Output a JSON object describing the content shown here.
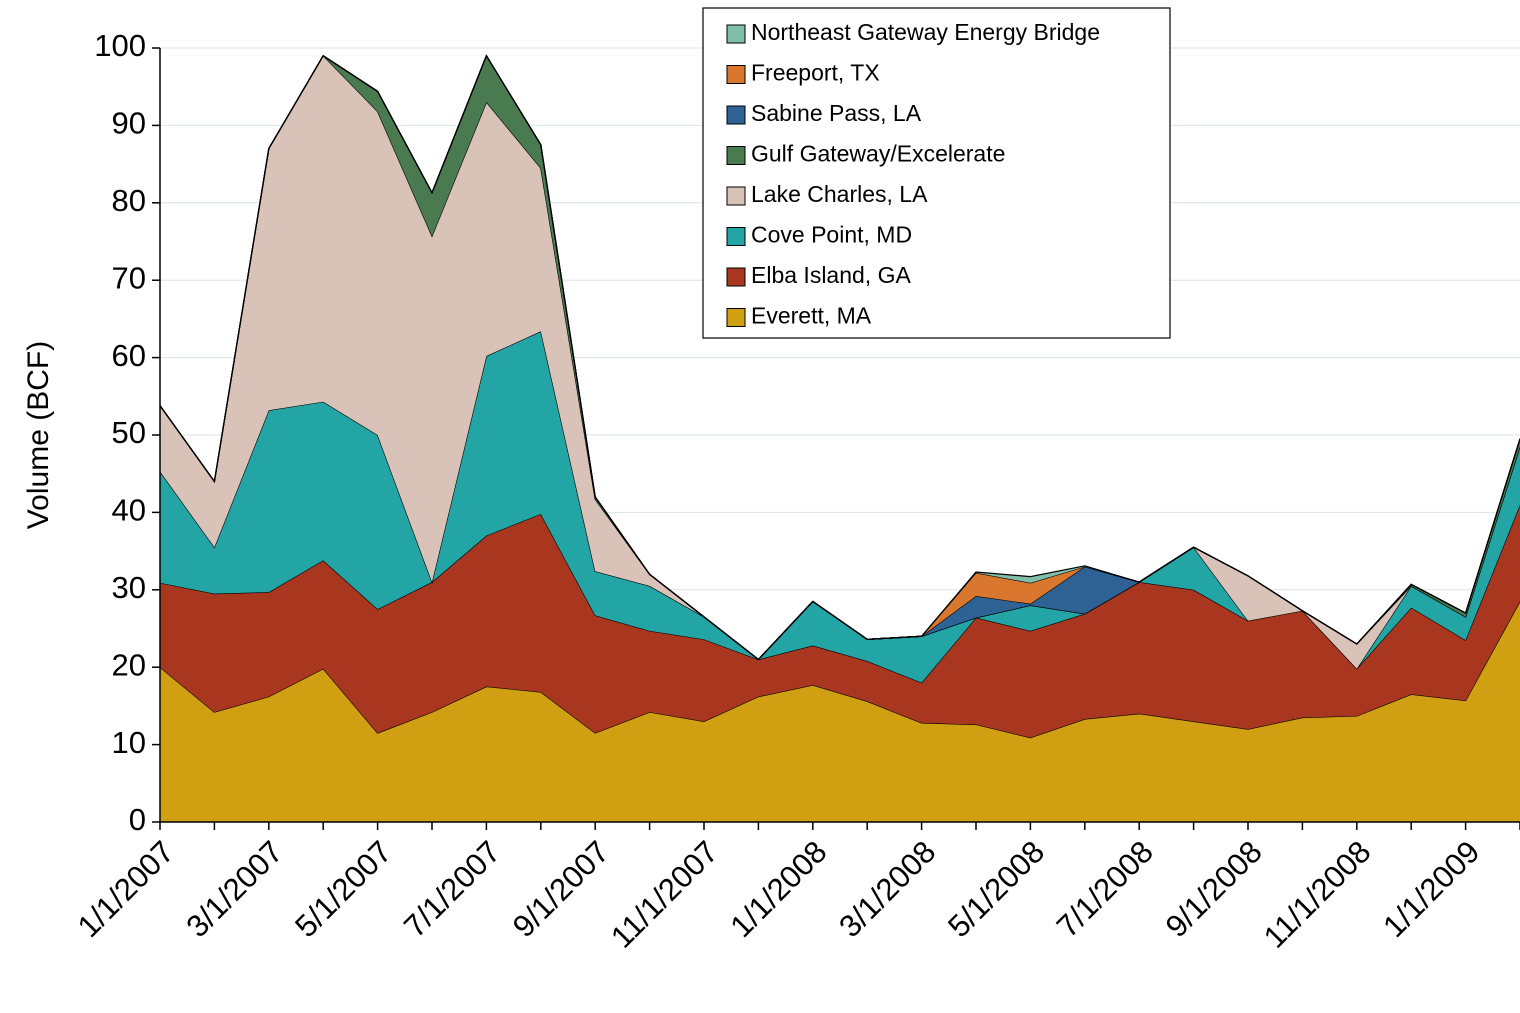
{
  "chart_data": {
    "type": "stacked_area",
    "y_label": "Volume (BCF)",
    "categories": [
      "1/1/2007",
      null,
      "3/1/2007",
      null,
      "5/1/2007",
      null,
      "7/1/2007",
      null,
      "9/1/2007",
      null,
      "11/1/2007",
      null,
      "1/1/2008",
      null,
      "3/1/2008",
      null,
      "5/1/2008",
      null,
      "7/1/2008",
      null,
      "9/1/2008",
      null,
      "11/1/2008",
      null,
      "1/1/2009",
      null
    ],
    "ylim": [
      0,
      100
    ],
    "yticks": [
      0,
      10,
      20,
      30,
      40,
      50,
      60,
      70,
      80,
      90,
      100
    ],
    "grid": true,
    "series": [
      {
        "name": "Everett, MA",
        "color": "#d1a012",
        "values": [
          20,
          14.2,
          16.2,
          19.8,
          11.5,
          14.2,
          17.5,
          16.8,
          11.5,
          14.2,
          13,
          16.2,
          17.7,
          15.6,
          12.8,
          12.6,
          10.9,
          13.3,
          14,
          13,
          12,
          13.5,
          13.7,
          16.5,
          15.7,
          28.5
        ]
      },
      {
        "name": "Elba Island, GA",
        "color": "#a9361f",
        "values": [
          10.9,
          15.3,
          13.5,
          14,
          16,
          16.8,
          19.5,
          23,
          15.2,
          10.5,
          10.6,
          4.8,
          5.1,
          5.2,
          5.2,
          13.8,
          13.8,
          13.6,
          17,
          17,
          14,
          13.8,
          6.1,
          11.2,
          7.8,
          12.5
        ]
      },
      {
        "name": "Cove Point, MD",
        "color": "#24a5a5",
        "values": [
          14.4,
          6,
          23.5,
          20.5,
          22.5,
          0,
          23.2,
          23.6,
          5.7,
          5.8,
          2.9,
          0,
          5.7,
          2.8,
          6,
          0,
          3.3,
          0,
          0,
          5.5,
          0,
          0,
          0,
          2.8,
          3,
          7.5
        ]
      },
      {
        "name": "Lake Charles, LA",
        "color": "#d9c3b8",
        "values": [
          8.5,
          8.5,
          33.8,
          44.7,
          41.8,
          44.7,
          32.8,
          21.1,
          9.3,
          1.5,
          0,
          0,
          0,
          0,
          0,
          0,
          0,
          0,
          0,
          0,
          5.8,
          0,
          3.2,
          0,
          0,
          0
        ]
      },
      {
        "name": "Gulf Gateway/Excelerate",
        "color": "#4a7a50",
        "values": [
          0,
          0,
          0,
          0,
          2.6,
          5.6,
          6,
          3,
          0.3,
          0,
          0,
          0,
          0,
          0,
          0,
          0,
          0,
          0,
          0,
          0,
          0,
          0,
          0,
          0.2,
          0.5,
          1
        ]
      },
      {
        "name": "Sabine Pass, LA",
        "color": "#2e6294",
        "values": [
          0,
          0,
          0,
          0,
          0,
          0,
          0,
          0,
          0,
          0,
          0,
          0,
          0,
          0,
          0,
          2.8,
          0.2,
          6.1,
          0,
          0,
          0,
          0,
          0,
          0,
          0,
          0
        ]
      },
      {
        "name": "Freeport, TX",
        "color": "#d9772f",
        "values": [
          0,
          0,
          0,
          0,
          0,
          0,
          0,
          0,
          0,
          0,
          0,
          0,
          0,
          0,
          0,
          3,
          2.7,
          0,
          0,
          0,
          0,
          0,
          0,
          0,
          0,
          0
        ]
      },
      {
        "name": "Northeast Gateway Energy Bridge",
        "color": "#80c0a8",
        "values": [
          0,
          0,
          0,
          0,
          0,
          0,
          0,
          0,
          0,
          0,
          0,
          0,
          0,
          0,
          0,
          0.1,
          0.8,
          0.1,
          0,
          0,
          0,
          0,
          0,
          0,
          0,
          0
        ]
      }
    ]
  }
}
